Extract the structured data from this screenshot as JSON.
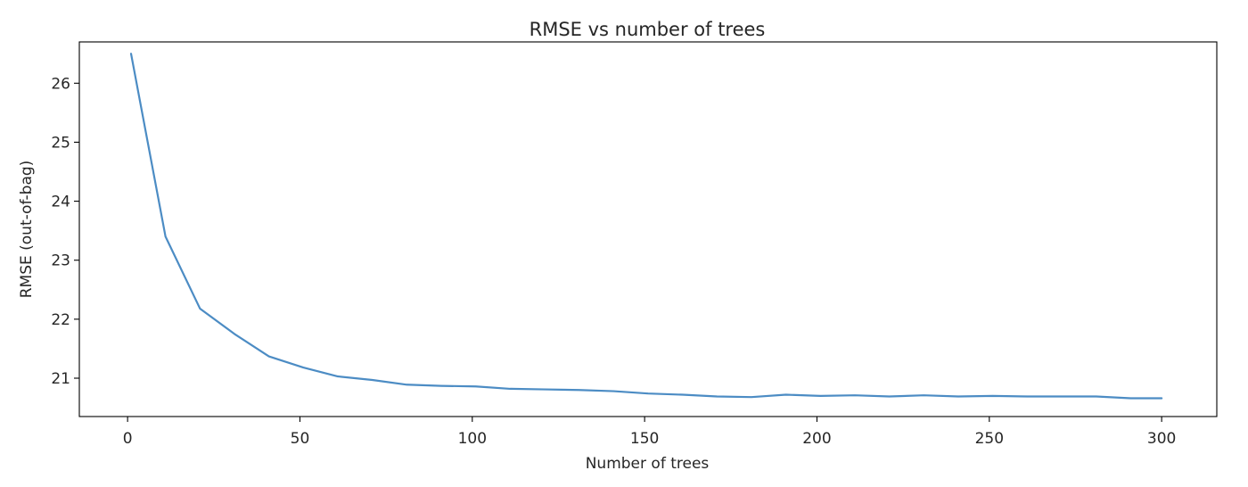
{
  "chart_data": {
    "type": "line",
    "title": "RMSE vs number of trees",
    "xlabel": "Number of trees",
    "ylabel": "RMSE (out-of-bag)",
    "xlim": [
      -14,
      316
    ],
    "ylim": [
      20.35,
      26.7
    ],
    "x_ticks": [
      0,
      50,
      100,
      150,
      200,
      250,
      300
    ],
    "x_tick_labels": [
      "0",
      "50",
      "100",
      "150",
      "200",
      "250",
      "300"
    ],
    "y_ticks": [
      21,
      22,
      23,
      24,
      25,
      26
    ],
    "y_tick_labels": [
      "21",
      "22",
      "23",
      "24",
      "25",
      "26"
    ],
    "grid": false,
    "series": [
      {
        "color": "#4c8cc4",
        "x": [
          1,
          11,
          21,
          31,
          41,
          51,
          61,
          71,
          81,
          91,
          101,
          111,
          121,
          131,
          141,
          151,
          161,
          171,
          181,
          191,
          201,
          211,
          221,
          231,
          241,
          251,
          261,
          271,
          281,
          291,
          300
        ],
        "y": [
          26.5,
          23.4,
          22.18,
          21.75,
          21.37,
          21.18,
          21.03,
          20.97,
          20.89,
          20.87,
          20.86,
          20.82,
          20.81,
          20.8,
          20.78,
          20.74,
          20.72,
          20.69,
          20.68,
          20.72,
          20.7,
          20.71,
          20.69,
          20.71,
          20.69,
          20.7,
          20.69,
          20.69,
          20.69,
          20.66,
          20.66
        ]
      }
    ]
  }
}
